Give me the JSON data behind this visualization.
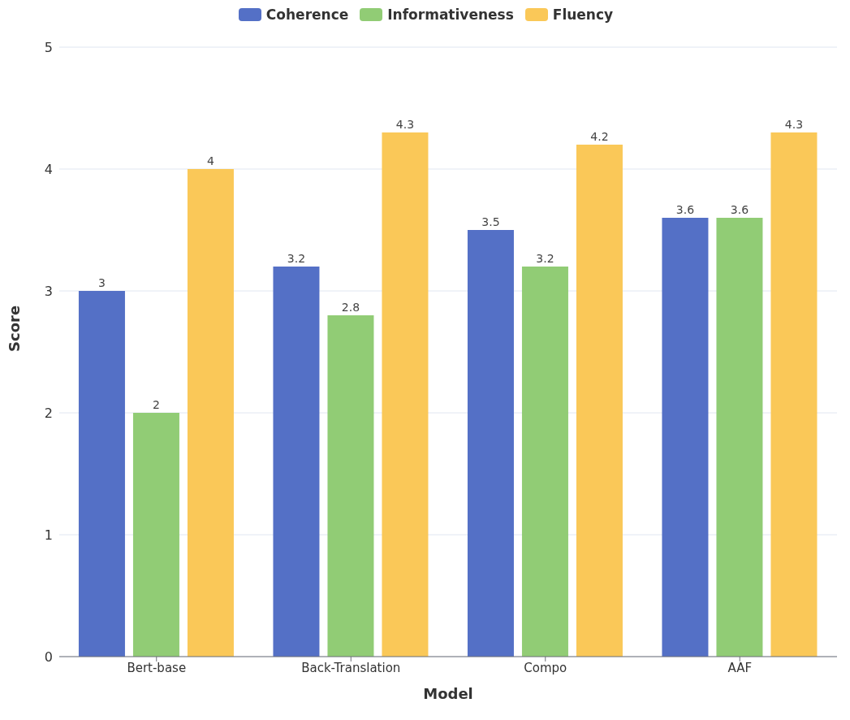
{
  "chart_data": {
    "type": "bar",
    "xlabel": "Model",
    "ylabel": "Score",
    "categories": [
      "Bert-base",
      "Back-Translation",
      "Compo",
      "AAF"
    ],
    "series": [
      {
        "name": "Coherence",
        "color": "#5470c6",
        "values": [
          3,
          3.2,
          3.5,
          3.6
        ]
      },
      {
        "name": "Informativeness",
        "color": "#91cc75",
        "values": [
          2,
          2.8,
          3.2,
          3.6
        ]
      },
      {
        "name": "Fluency",
        "color": "#fac858",
        "values": [
          4,
          4.3,
          4.2,
          4.3
        ]
      }
    ],
    "ylim": [
      0,
      5
    ],
    "yticks": [
      0,
      1,
      2,
      3,
      4,
      5
    ],
    "grid": "y",
    "legend": "top",
    "data_labels": true
  }
}
